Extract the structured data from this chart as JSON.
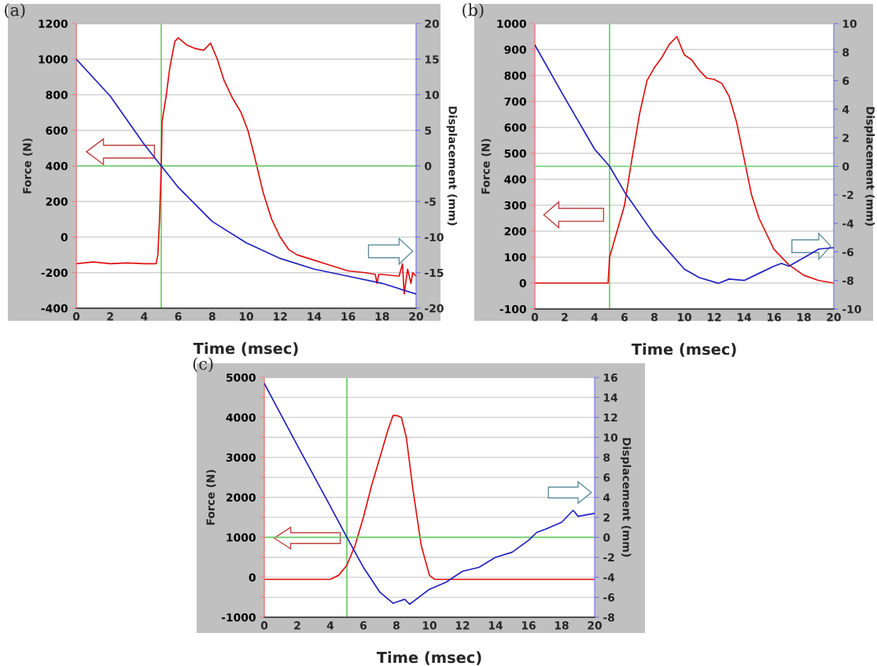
{
  "chart_data": [
    {
      "type": "line",
      "xlabel": "Time (msec)",
      "ylabel": "Force (N)",
      "y2label": "Displacement (mm)",
      "annotations": [
        "(a)"
      ],
      "xlim": [
        0,
        20
      ],
      "xticks": [
        0,
        2,
        4,
        6,
        8,
        10,
        12,
        14,
        16,
        18,
        20
      ],
      "ylim": [
        -400,
        1200
      ],
      "yticks": [
        -400,
        -200,
        0,
        200,
        400,
        600,
        800,
        1000,
        1200
      ],
      "y2lim": [
        -20,
        20
      ],
      "y2ticks": [
        -20,
        -15,
        -10,
        -5,
        0,
        5,
        10,
        15,
        20
      ],
      "grid": "y",
      "ref_lines": [
        {
          "axis": "x",
          "value": 5,
          "color": "#66cc66"
        },
        {
          "axis": "y2",
          "value": 0,
          "color": "#66cc66"
        }
      ],
      "series": [
        {
          "color": "#e01010",
          "x": [
            0,
            1,
            2,
            3,
            4,
            4.7,
            4.8,
            4.9,
            5.0,
            5.05,
            5.3,
            5.5,
            5.8,
            6.0,
            6.5,
            7,
            7.5,
            7.9,
            8.3,
            8.7,
            9.2,
            9.7,
            10.1,
            10.5,
            11,
            11.5,
            12,
            12.5,
            13,
            14,
            15,
            16,
            17,
            17.6,
            17.7,
            17.8,
            18,
            19,
            19.2,
            19.3,
            19.5,
            19.7,
            19.8,
            20
          ],
          "values": [
            -150,
            -140,
            -150,
            -145,
            -150,
            -150,
            -100,
            100,
            400,
            650,
            800,
            950,
            1100,
            1120,
            1080,
            1060,
            1050,
            1090,
            1000,
            880,
            780,
            700,
            600,
            450,
            250,
            100,
            0,
            -70,
            -100,
            -130,
            -160,
            -190,
            -200,
            -210,
            -260,
            -210,
            -210,
            -220,
            -150,
            -320,
            -180,
            -260,
            -200,
            -220
          ]
        },
        {
          "color": "#2020c0",
          "axis": "y2",
          "x": [
            0,
            2,
            4,
            5,
            6,
            8,
            10,
            12,
            14,
            16,
            18,
            20
          ],
          "values": [
            15,
            9.8,
            3,
            0,
            -3,
            -7.8,
            -10.8,
            -13,
            -14.5,
            -15.5,
            -16.5,
            -18
          ]
        }
      ]
    },
    {
      "type": "line",
      "xlabel": "Time (msec)",
      "ylabel": "Force (N)",
      "y2label": "Displacement (mm)",
      "annotations": [
        "(b)"
      ],
      "xlim": [
        0,
        20
      ],
      "xticks": [
        0,
        2,
        4,
        6,
        8,
        10,
        12,
        14,
        16,
        18,
        20
      ],
      "ylim": [
        -100,
        1000
      ],
      "yticks": [
        -100,
        0,
        100,
        200,
        300,
        400,
        500,
        600,
        700,
        800,
        900,
        1000
      ],
      "y2lim": [
        -10,
        10
      ],
      "y2ticks": [
        -10,
        -8,
        -6,
        -4,
        -2,
        0,
        2,
        4,
        6,
        8,
        10
      ],
      "grid": "y",
      "ref_lines": [
        {
          "axis": "x",
          "value": 5,
          "color": "#66cc66"
        },
        {
          "axis": "y2",
          "value": 0,
          "color": "#66cc66"
        }
      ],
      "series": [
        {
          "color": "#e01010",
          "x": [
            0,
            2,
            4,
            4.9,
            5,
            5.5,
            6,
            6.5,
            7,
            7.5,
            8,
            8.5,
            9,
            9.5,
            10,
            10.5,
            11,
            11.5,
            12,
            12.5,
            13,
            13.5,
            14,
            14.5,
            15,
            16,
            17,
            18,
            19,
            20
          ],
          "values": [
            0,
            0,
            0,
            0,
            100,
            200,
            300,
            480,
            650,
            780,
            830,
            870,
            920,
            950,
            880,
            860,
            820,
            790,
            785,
            770,
            720,
            620,
            480,
            340,
            250,
            130,
            70,
            30,
            10,
            0
          ]
        },
        {
          "color": "#2020c0",
          "axis": "y2",
          "x": [
            0,
            2,
            4,
            5,
            6,
            8,
            10,
            11,
            12.3,
            13,
            14,
            15,
            16,
            16.5,
            17,
            18,
            19,
            20
          ],
          "values": [
            8.5,
            4.8,
            1.2,
            0,
            -1.8,
            -4.8,
            -7.2,
            -7.8,
            -8.2,
            -7.9,
            -8.0,
            -7.5,
            -7.0,
            -6.8,
            -7.0,
            -6.4,
            -5.8,
            -5.7
          ]
        }
      ]
    },
    {
      "type": "line",
      "xlabel": "Time (msec)",
      "ylabel": "Force (N)",
      "y2label": "Displacement (mm)",
      "annotations": [
        "(c)"
      ],
      "xlim": [
        0,
        20
      ],
      "xticks": [
        0,
        2,
        4,
        6,
        8,
        10,
        12,
        14,
        16,
        18,
        20
      ],
      "ylim": [
        -1000,
        5000
      ],
      "yticks": [
        -1000,
        {
          "value": -500,
          "label": null
        },
        0,
        {
          "value": 500,
          "label": null
        },
        1000,
        {
          "value": 1500,
          "label": null
        },
        2000,
        {
          "value": 2500,
          "label": null
        },
        3000,
        {
          "value": 3500,
          "label": null
        },
        4000,
        {
          "value": 4500,
          "label": null
        },
        5000
      ],
      "y2lim": [
        -8,
        16
      ],
      "y2ticks": [
        -8,
        -6,
        -4,
        -2,
        0,
        2,
        4,
        6,
        8,
        10,
        12,
        14,
        16
      ],
      "grid": "y",
      "ref_lines": [
        {
          "axis": "x",
          "value": 5,
          "color": "#66cc66"
        },
        {
          "axis": "y2",
          "value": 0,
          "color": "#66cc66"
        }
      ],
      "series": [
        {
          "color": "#e01010",
          "x": [
            0,
            4,
            4.5,
            5,
            5.5,
            6,
            6.5,
            7,
            7.5,
            7.8,
            8,
            8.3,
            8.6,
            9,
            9.5,
            10,
            10.3,
            12,
            14,
            16,
            18,
            20
          ],
          "values": [
            -50,
            -50,
            50,
            300,
            800,
            1500,
            2300,
            3000,
            3700,
            4050,
            4050,
            4000,
            3500,
            2200,
            800,
            50,
            -50,
            -50,
            -50,
            -50,
            -50,
            -50
          ]
        },
        {
          "color": "#2020c0",
          "axis": "y2",
          "x": [
            0,
            2,
            4,
            5,
            6,
            7,
            7.8,
            8.5,
            8.8,
            10,
            11,
            12,
            13,
            14,
            15,
            16,
            16.5,
            17,
            18,
            18.7,
            19,
            20
          ],
          "values": [
            15.4,
            9.2,
            3.1,
            0,
            -3,
            -5.5,
            -6.6,
            -6.2,
            -6.7,
            -5.2,
            -4.5,
            -3.4,
            -3,
            -2,
            -1.5,
            -0.3,
            0.5,
            0.8,
            1.5,
            2.7,
            2.1,
            2.4
          ]
        }
      ]
    }
  ]
}
